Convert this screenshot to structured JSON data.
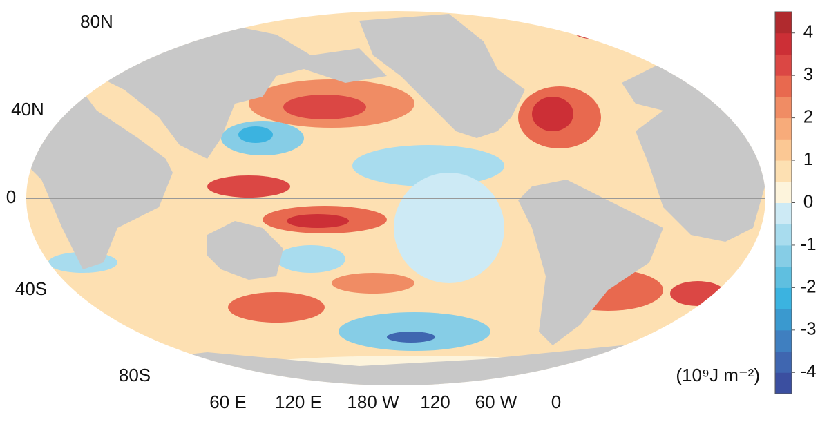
{
  "map": {
    "lat_labels": [
      "80N",
      "40N",
      "0",
      "40S",
      "80S"
    ],
    "lon_labels": [
      "60 E",
      "120 E",
      "180 W",
      "120",
      "60 W",
      "0"
    ],
    "colorbar": {
      "lim": [
        -4.5,
        4.5
      ],
      "ticks": [
        4,
        3,
        2,
        1,
        0,
        -1,
        -2,
        -3,
        -4
      ],
      "unit": "(10⁹J m⁻²)",
      "colors": [
        "#3b4fa0",
        "#3f66b0",
        "#3f7fc0",
        "#3a99cf",
        "#3bb3e0",
        "#5fbfe0",
        "#86cde6",
        "#a8dcee",
        "#cdeaf5",
        "#fdf4dc",
        "#fde0b2",
        "#fbc894",
        "#f7ab7a",
        "#f08c64",
        "#e8694f",
        "#db4744",
        "#cc2f36",
        "#b02a2e"
      ]
    }
  }
}
